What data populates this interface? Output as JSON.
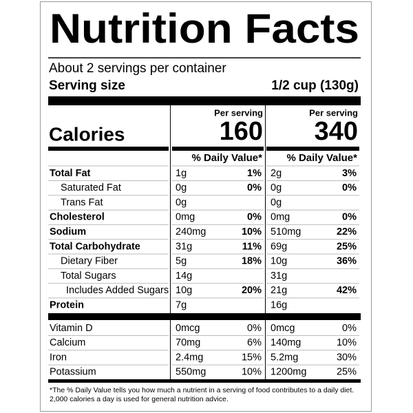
{
  "header": {
    "title": "Nutrition Facts",
    "servings": "About 2 servings per container",
    "serving_size_label": "Serving size",
    "serving_size_value": "1/2 cup (130g)"
  },
  "calories_label": "Calories",
  "columns": [
    {
      "per_serving": "Per serving",
      "calories": 160,
      "dv_header": "% Daily Value*"
    },
    {
      "per_serving": "Per serving",
      "calories": 340,
      "dv_header": "% Daily Value*"
    }
  ],
  "nutrients": [
    {
      "label": "Total Fat",
      "bold": true,
      "indent": 0,
      "cells": [
        [
          "1g",
          "1%"
        ],
        [
          "2g",
          "3%"
        ]
      ]
    },
    {
      "label": "Saturated Fat",
      "bold": false,
      "indent": 1,
      "cells": [
        [
          "0g",
          "0%"
        ],
        [
          "0g",
          "0%"
        ]
      ]
    },
    {
      "label": "Trans Fat",
      "bold": false,
      "indent": 1,
      "cells": [
        [
          "0g",
          null
        ],
        [
          "0g",
          null
        ]
      ]
    },
    {
      "label": "Cholesterol",
      "bold": true,
      "indent": 0,
      "cells": [
        [
          "0mg",
          "0%"
        ],
        [
          "0mg",
          "0%"
        ]
      ]
    },
    {
      "label": "Sodium",
      "bold": true,
      "indent": 0,
      "cells": [
        [
          "240mg",
          "10%"
        ],
        [
          "510mg",
          "22%"
        ]
      ]
    },
    {
      "label": "Total Carbohydrate",
      "bold": true,
      "indent": 0,
      "cells": [
        [
          "31g",
          "11%"
        ],
        [
          "69g",
          "25%"
        ]
      ]
    },
    {
      "label": "Dietary Fiber",
      "bold": false,
      "indent": 1,
      "cells": [
        [
          "5g",
          "18%"
        ],
        [
          "10g",
          "36%"
        ]
      ]
    },
    {
      "label": "Total Sugars",
      "bold": false,
      "indent": 1,
      "cells": [
        [
          "14g",
          null
        ],
        [
          "31g",
          null
        ]
      ]
    },
    {
      "label": "Includes Added Sugars",
      "bold": false,
      "indent": 2,
      "cells": [
        [
          "10g",
          "20%"
        ],
        [
          "21g",
          "42%"
        ]
      ]
    },
    {
      "label": "Protein",
      "bold": true,
      "indent": 0,
      "cells": [
        [
          "7g",
          null
        ],
        [
          "16g",
          null
        ]
      ]
    }
  ],
  "vitamins": [
    {
      "label": "Vitamin D",
      "cells": [
        [
          "0mcg",
          "0%"
        ],
        [
          "0mcg",
          "0%"
        ]
      ]
    },
    {
      "label": "Calcium",
      "cells": [
        [
          "70mg",
          "6%"
        ],
        [
          "140mg",
          "10%"
        ]
      ]
    },
    {
      "label": "Iron",
      "cells": [
        [
          "2.4mg",
          "15%"
        ],
        [
          "5.2mg",
          "30%"
        ]
      ]
    },
    {
      "label": "Potassium",
      "cells": [
        [
          "550mg",
          "10%"
        ],
        [
          "1200mg",
          "25%"
        ]
      ]
    }
  ],
  "footnote": [
    "*The % Daily Value tells you how much a nutrient in a serving of food contributes to a daily diet.",
    "2,000 calories a day is used for general nutrition advice."
  ]
}
